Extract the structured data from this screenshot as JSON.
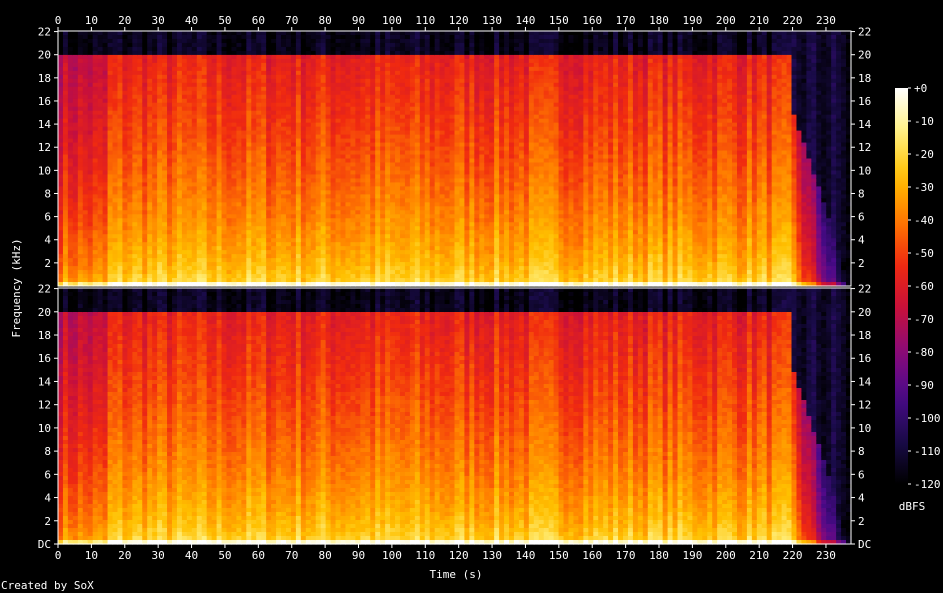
{
  "chart_data": {
    "type": "heatmap",
    "title": "",
    "xlabel": "Time (s)",
    "ylabel": "Frequency (kHz)",
    "x_ticks": [
      0,
      10,
      20,
      30,
      40,
      50,
      60,
      70,
      80,
      90,
      100,
      110,
      120,
      130,
      140,
      150,
      160,
      170,
      180,
      190,
      200,
      210,
      220,
      230
    ],
    "xlim": [
      0,
      237.5
    ],
    "channels": [
      {
        "y_ticks": [
          "22",
          "20",
          "18",
          "16",
          "14",
          "12",
          "10",
          "8",
          "6",
          "4",
          "2"
        ]
      },
      {
        "y_ticks": [
          "22",
          "20",
          "18",
          "16",
          "14",
          "12",
          "10",
          "8",
          "6",
          "4",
          "2",
          "DC"
        ]
      }
    ],
    "ylim_khz": [
      0,
      22.05
    ],
    "colorbar": {
      "label": "dBFS",
      "ticks": [
        "+0",
        "-10",
        "-20",
        "-30",
        "-40",
        "-50",
        "-60",
        "-70",
        "-80",
        "-90",
        "-100",
        "-110",
        "-120"
      ],
      "range_db": [
        -120,
        0
      ]
    },
    "colors": {
      "background": "#000000",
      "text": "#ffffff",
      "palette": [
        "#000000",
        "#1a0b4a",
        "#4a0a8a",
        "#8a0a7a",
        "#c8103a",
        "#f02a10",
        "#ff7a00",
        "#ffc000",
        "#fff080",
        "#ffffff"
      ]
    }
  },
  "footer": {
    "credit": "Created by SoX"
  }
}
